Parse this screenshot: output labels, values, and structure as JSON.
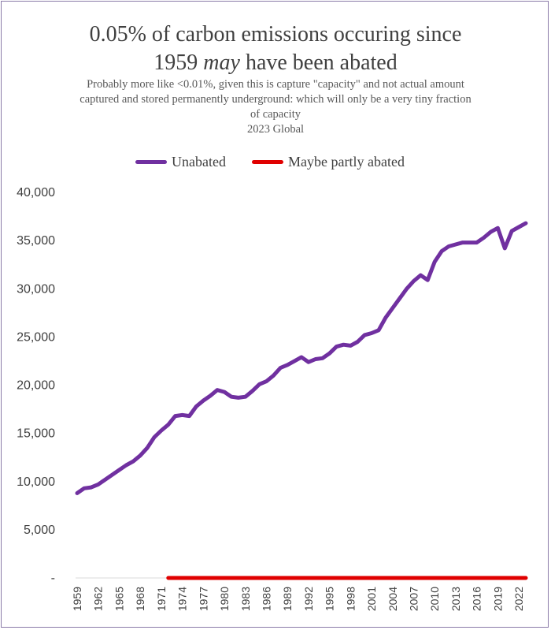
{
  "colors": {
    "unabated": "#7030a0",
    "abated": "#e00000",
    "text": "#404040",
    "frame": "#8a7aa8"
  },
  "header": {
    "title_line1": "0.05% of carbon emissions occuring since",
    "title_line2_pre": "1959 ",
    "title_line2_em": "may",
    "title_line2_post": " have been abated",
    "subtitle_line1": "Probably more like <0.01%, given this is capture \"capacity\" and not actual amount",
    "subtitle_line2": "captured and stored permanently underground: which will only be a very tiny fraction",
    "subtitle_line3": "of capacity",
    "subtitle_line4": "2023 Global"
  },
  "chart_data": {
    "type": "line",
    "title": "0.05% of carbon emissions occuring since 1959 may have been abated",
    "subtitle": "Probably more like <0.01%, given this is capture \"capacity\" and not actual amount captured and stored permanently underground: which will only be a very tiny fraction of capacity 2023 Global",
    "legend_position": "top",
    "grid": false,
    "xlabel": "",
    "ylabel": "",
    "ylim": [
      0,
      40000
    ],
    "y_ticks": [
      0,
      5000,
      10000,
      15000,
      20000,
      25000,
      30000,
      35000,
      40000
    ],
    "y_tick_labels": [
      "-",
      "5,000",
      "10,000",
      "15,000",
      "20,000",
      "25,000",
      "30,000",
      "35,000",
      "40,000"
    ],
    "x_tick_labels": [
      "1959",
      "1962",
      "1965",
      "1968",
      "1971",
      "1974",
      "1977",
      "1980",
      "1983",
      "1986",
      "1989",
      "1992",
      "1995",
      "1998",
      "2001",
      "2004",
      "2007",
      "2010",
      "2013",
      "2016",
      "2019",
      "2022"
    ],
    "x": [
      1959,
      1960,
      1961,
      1962,
      1963,
      1964,
      1965,
      1966,
      1967,
      1968,
      1969,
      1970,
      1971,
      1972,
      1973,
      1974,
      1975,
      1976,
      1977,
      1978,
      1979,
      1980,
      1981,
      1982,
      1983,
      1984,
      1985,
      1986,
      1987,
      1988,
      1989,
      1990,
      1991,
      1992,
      1993,
      1994,
      1995,
      1996,
      1997,
      1998,
      1999,
      2000,
      2001,
      2002,
      2003,
      2004,
      2005,
      2006,
      2007,
      2008,
      2009,
      2010,
      2011,
      2012,
      2013,
      2014,
      2015,
      2016,
      2017,
      2018,
      2019,
      2020,
      2021,
      2022,
      2023
    ],
    "series": [
      {
        "name": "Unabated",
        "values": [
          8800,
          9300,
          9400,
          9700,
          10200,
          10700,
          11200,
          11700,
          12100,
          12700,
          13500,
          14600,
          15300,
          15900,
          16800,
          16900,
          16800,
          17800,
          18400,
          18900,
          19500,
          19300,
          18800,
          18700,
          18800,
          19400,
          20100,
          20400,
          21000,
          21800,
          22100,
          22500,
          22900,
          22400,
          22700,
          22800,
          23300,
          24000,
          24200,
          24100,
          24500,
          25200,
          25400,
          25700,
          27000,
          28000,
          29000,
          30000,
          30800,
          31400,
          30900,
          32800,
          33900,
          34400,
          34600,
          34800,
          34800,
          34800,
          35300,
          35900,
          36300,
          34200,
          36000,
          36400,
          36800
        ]
      },
      {
        "name": "Maybe partly abated",
        "values": [
          null,
          null,
          null,
          null,
          null,
          null,
          null,
          null,
          null,
          null,
          null,
          null,
          null,
          0,
          0,
          0,
          0,
          0,
          0,
          0,
          0,
          0,
          0,
          0,
          0,
          0,
          0,
          0,
          0,
          0,
          0,
          0,
          0,
          0,
          0,
          0,
          0,
          0,
          0,
          0,
          0,
          0,
          0,
          0,
          0,
          0,
          0,
          0,
          0,
          0,
          0,
          0,
          0,
          0,
          0,
          0,
          0,
          0,
          0,
          0,
          0,
          0,
          0,
          0,
          0
        ]
      }
    ]
  }
}
